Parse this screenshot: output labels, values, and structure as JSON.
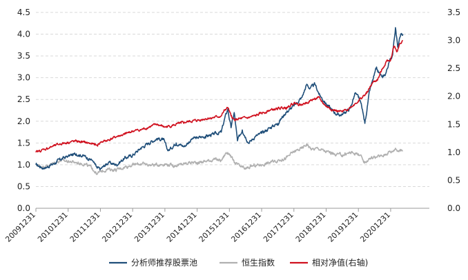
{
  "chart_data": {
    "type": "line",
    "title": "",
    "xlabel": "",
    "ylabel": "",
    "grid": true,
    "legend_position": "bottom",
    "y_left": {
      "min": 0,
      "max": 4.5,
      "ticks": [
        "0.0",
        "0.5",
        "1.0",
        "1.5",
        "2.0",
        "2.5",
        "3.0",
        "3.5",
        "4.0",
        "4.5"
      ]
    },
    "y_right": {
      "min": 0,
      "max": 3.5,
      "ticks": [
        "0.0",
        "0.5",
        "1.0",
        "1.5",
        "2.0",
        "2.5",
        "3.0",
        "3.5"
      ]
    },
    "x_ticks": [
      "20091231",
      "20101231",
      "20111231",
      "20121231",
      "20131231",
      "20141231",
      "20151231",
      "20161231",
      "20171231",
      "20181231",
      "20191231",
      "20201231"
    ],
    "x_range": [
      2009.0,
      2021.2
    ],
    "series": [
      {
        "name": "分析师推荐股票池",
        "axis": "left",
        "color": "#1f4e79",
        "points": [
          [
            2009.0,
            1.0
          ],
          [
            2009.25,
            0.92
          ],
          [
            2009.5,
            1.0
          ],
          [
            2009.75,
            1.12
          ],
          [
            2010.0,
            1.2
          ],
          [
            2010.25,
            1.25
          ],
          [
            2010.5,
            1.2
          ],
          [
            2010.75,
            1.1
          ],
          [
            2010.9,
            0.92
          ],
          [
            2011.0,
            0.9
          ],
          [
            2011.25,
            1.05
          ],
          [
            2011.5,
            1.0
          ],
          [
            2011.75,
            1.15
          ],
          [
            2012.0,
            1.22
          ],
          [
            2012.25,
            1.38
          ],
          [
            2012.5,
            1.5
          ],
          [
            2012.75,
            1.6
          ],
          [
            2012.95,
            1.58
          ],
          [
            2013.1,
            1.32
          ],
          [
            2013.35,
            1.5
          ],
          [
            2013.6,
            1.42
          ],
          [
            2013.85,
            1.6
          ],
          [
            2014.0,
            1.62
          ],
          [
            2014.25,
            1.65
          ],
          [
            2014.5,
            1.7
          ],
          [
            2014.75,
            1.75
          ],
          [
            2014.85,
            2.05
          ],
          [
            2014.95,
            2.28
          ],
          [
            2015.05,
            1.85
          ],
          [
            2015.15,
            2.2
          ],
          [
            2015.25,
            1.55
          ],
          [
            2015.4,
            1.8
          ],
          [
            2015.6,
            1.5
          ],
          [
            2015.8,
            1.65
          ],
          [
            2016.0,
            1.72
          ],
          [
            2016.25,
            1.85
          ],
          [
            2016.5,
            1.95
          ],
          [
            2016.75,
            2.2
          ],
          [
            2017.0,
            2.35
          ],
          [
            2017.25,
            2.55
          ],
          [
            2017.4,
            2.85
          ],
          [
            2017.5,
            2.75
          ],
          [
            2017.65,
            2.85
          ],
          [
            2017.8,
            2.6
          ],
          [
            2018.0,
            2.4
          ],
          [
            2018.2,
            2.25
          ],
          [
            2018.35,
            2.15
          ],
          [
            2018.5,
            2.15
          ],
          [
            2018.75,
            2.3
          ],
          [
            2018.9,
            2.65
          ],
          [
            2019.0,
            2.55
          ],
          [
            2019.1,
            2.35
          ],
          [
            2019.2,
            1.95
          ],
          [
            2019.35,
            2.7
          ],
          [
            2019.55,
            3.2
          ],
          [
            2019.75,
            3.0
          ],
          [
            2019.85,
            3.1
          ],
          [
            2019.95,
            3.35
          ],
          [
            2020.05,
            3.5
          ],
          [
            2020.15,
            4.15
          ],
          [
            2020.22,
            3.7
          ],
          [
            2020.3,
            3.95
          ],
          [
            2020.38,
            4.0
          ]
        ]
      },
      {
        "name": "恒生指数",
        "axis": "left",
        "color": "#b0b0b0",
        "points": [
          [
            2009.0,
            1.0
          ],
          [
            2009.25,
            0.95
          ],
          [
            2009.5,
            1.02
          ],
          [
            2009.75,
            1.1
          ],
          [
            2010.0,
            1.08
          ],
          [
            2010.25,
            1.05
          ],
          [
            2010.5,
            1.02
          ],
          [
            2010.75,
            0.92
          ],
          [
            2010.9,
            0.78
          ],
          [
            2011.0,
            0.85
          ],
          [
            2011.25,
            0.9
          ],
          [
            2011.5,
            0.88
          ],
          [
            2011.75,
            0.95
          ],
          [
            2012.0,
            1.0
          ],
          [
            2012.25,
            1.02
          ],
          [
            2012.5,
            1.0
          ],
          [
            2012.75,
            1.0
          ],
          [
            2013.0,
            1.02
          ],
          [
            2013.25,
            0.98
          ],
          [
            2013.5,
            1.0
          ],
          [
            2013.75,
            1.05
          ],
          [
            2014.0,
            1.05
          ],
          [
            2014.25,
            1.08
          ],
          [
            2014.5,
            1.12
          ],
          [
            2014.75,
            1.1
          ],
          [
            2014.9,
            1.28
          ],
          [
            2015.0,
            1.25
          ],
          [
            2015.15,
            1.05
          ],
          [
            2015.35,
            0.95
          ],
          [
            2015.5,
            0.9
          ],
          [
            2015.75,
            0.98
          ],
          [
            2016.0,
            1.0
          ],
          [
            2016.25,
            1.05
          ],
          [
            2016.5,
            1.1
          ],
          [
            2016.75,
            1.15
          ],
          [
            2017.0,
            1.3
          ],
          [
            2017.25,
            1.38
          ],
          [
            2017.4,
            1.48
          ],
          [
            2017.55,
            1.35
          ],
          [
            2017.75,
            1.38
          ],
          [
            2018.0,
            1.3
          ],
          [
            2018.25,
            1.25
          ],
          [
            2018.5,
            1.22
          ],
          [
            2018.75,
            1.28
          ],
          [
            2019.0,
            1.25
          ],
          [
            2019.2,
            1.05
          ],
          [
            2019.35,
            1.15
          ],
          [
            2019.55,
            1.18
          ],
          [
            2019.75,
            1.2
          ],
          [
            2019.95,
            1.3
          ],
          [
            2020.05,
            1.3
          ],
          [
            2020.15,
            1.38
          ],
          [
            2020.25,
            1.32
          ],
          [
            2020.38,
            1.32
          ]
        ]
      },
      {
        "name": "相对净值(右轴)",
        "axis": "right",
        "color": "#d0101e",
        "points": [
          [
            2009.0,
            1.0
          ],
          [
            2009.25,
            1.05
          ],
          [
            2009.5,
            1.1
          ],
          [
            2009.75,
            1.15
          ],
          [
            2010.0,
            1.18
          ],
          [
            2010.25,
            1.2
          ],
          [
            2010.5,
            1.18
          ],
          [
            2010.75,
            1.15
          ],
          [
            2010.9,
            1.12
          ],
          [
            2011.0,
            1.18
          ],
          [
            2011.25,
            1.22
          ],
          [
            2011.5,
            1.28
          ],
          [
            2011.75,
            1.32
          ],
          [
            2012.0,
            1.38
          ],
          [
            2012.25,
            1.4
          ],
          [
            2012.5,
            1.45
          ],
          [
            2012.75,
            1.5
          ],
          [
            2013.0,
            1.45
          ],
          [
            2013.25,
            1.48
          ],
          [
            2013.5,
            1.52
          ],
          [
            2013.75,
            1.55
          ],
          [
            2014.0,
            1.57
          ],
          [
            2014.25,
            1.6
          ],
          [
            2014.5,
            1.62
          ],
          [
            2014.75,
            1.65
          ],
          [
            2014.85,
            1.75
          ],
          [
            2014.95,
            1.8
          ],
          [
            2015.05,
            1.65
          ],
          [
            2015.15,
            1.58
          ],
          [
            2015.35,
            1.6
          ],
          [
            2015.6,
            1.62
          ],
          [
            2015.8,
            1.65
          ],
          [
            2016.0,
            1.7
          ],
          [
            2016.25,
            1.75
          ],
          [
            2016.5,
            1.78
          ],
          [
            2016.75,
            1.8
          ],
          [
            2017.0,
            1.88
          ],
          [
            2017.25,
            1.85
          ],
          [
            2017.5,
            1.92
          ],
          [
            2017.75,
            1.98
          ],
          [
            2018.0,
            1.82
          ],
          [
            2018.25,
            1.75
          ],
          [
            2018.5,
            1.72
          ],
          [
            2018.75,
            1.8
          ],
          [
            2019.0,
            1.92
          ],
          [
            2019.25,
            2.05
          ],
          [
            2019.45,
            2.25
          ],
          [
            2019.6,
            2.3
          ],
          [
            2019.75,
            2.5
          ],
          [
            2019.9,
            2.65
          ],
          [
            2020.0,
            2.65
          ],
          [
            2020.1,
            2.9
          ],
          [
            2020.2,
            2.8
          ],
          [
            2020.3,
            2.95
          ],
          [
            2020.38,
            3.0
          ]
        ]
      }
    ]
  }
}
